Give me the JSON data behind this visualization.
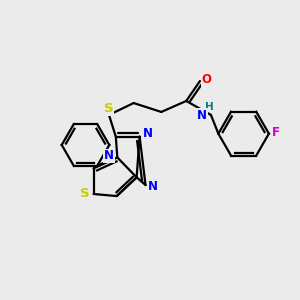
{
  "background_color": "#ebebeb",
  "atom_colors": {
    "N": "#0000ff",
    "S": "#cccc00",
    "O": "#ff0000",
    "F": "#cc00cc",
    "H": "#008080",
    "C": "#000000"
  },
  "figsize": [
    3.0,
    3.0
  ],
  "dpi": 100
}
